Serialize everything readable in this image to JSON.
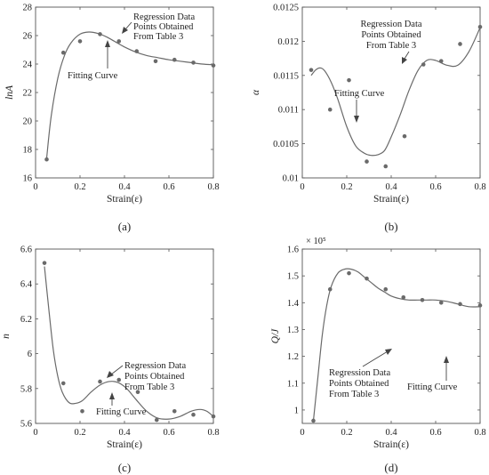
{
  "chart_data": [
    {
      "type": "scatter",
      "panel": "a",
      "caption": "(a)",
      "ylabel": "lnA",
      "xlabel": "Strain(ε)",
      "xlim": [
        0,
        0.8
      ],
      "ylim": [
        16,
        28
      ],
      "xticks": [
        "0",
        "0.2",
        "0.4",
        "0.6",
        "0.8"
      ],
      "yticks": [
        "16",
        "18",
        "20",
        "22",
        "24",
        "26",
        "28"
      ],
      "annotations": {
        "regression": [
          "Regression Data",
          "Points Obtained",
          "From Table 3"
        ],
        "fitting": "Fitting Curve"
      },
      "points": {
        "x": [
          0.05,
          0.125,
          0.2,
          0.29,
          0.375,
          0.455,
          0.54,
          0.625,
          0.71,
          0.8
        ],
        "y": [
          17.3,
          24.8,
          25.6,
          26.1,
          25.6,
          24.9,
          24.2,
          24.3,
          24.1,
          23.9
        ]
      },
      "curve": {
        "x": [
          0.05,
          0.07,
          0.1,
          0.13,
          0.16,
          0.2,
          0.24,
          0.28,
          0.32,
          0.36,
          0.4,
          0.45,
          0.5,
          0.55,
          0.6,
          0.65,
          0.7,
          0.75,
          0.8
        ],
        "y": [
          17.4,
          20.3,
          23.0,
          24.6,
          25.5,
          26.1,
          26.25,
          26.15,
          25.9,
          25.55,
          25.2,
          24.85,
          24.6,
          24.45,
          24.3,
          24.2,
          24.1,
          24.0,
          23.95
        ]
      },
      "series": [
        {
          "name": "Regression Data Points Obtained From Table 3",
          "style": "markers"
        },
        {
          "name": "Fitting Curve",
          "style": "line"
        }
      ]
    },
    {
      "type": "scatter",
      "panel": "b",
      "caption": "(b)",
      "ylabel": "α",
      "xlabel": "Strain(ε)",
      "xlim": [
        0,
        0.8
      ],
      "ylim": [
        0.01,
        0.0125
      ],
      "xticks": [
        "0",
        "0.2",
        "0.4",
        "0.6",
        "0.8"
      ],
      "yticks": [
        "0.01",
        "0.0105",
        "0.011",
        "0.0115",
        "0.012",
        "0.0125"
      ],
      "annotations": {
        "regression": [
          "Regression Data",
          "Points Obtained",
          "From Table 3"
        ],
        "fitting": "Fitting Curve"
      },
      "points": {
        "x": [
          0.04,
          0.125,
          0.21,
          0.29,
          0.375,
          0.46,
          0.545,
          0.625,
          0.71,
          0.8
        ],
        "y": [
          0.01158,
          0.011,
          0.01143,
          0.01024,
          0.01017,
          0.01061,
          0.01166,
          0.01171,
          0.01196,
          0.01221
        ]
      },
      "curve": {
        "x": [
          0.04,
          0.06,
          0.08,
          0.1,
          0.13,
          0.16,
          0.2,
          0.24,
          0.28,
          0.31,
          0.34,
          0.37,
          0.4,
          0.44,
          0.48,
          0.52,
          0.56,
          0.6,
          0.65,
          0.7,
          0.75,
          0.8
        ],
        "y": [
          0.0115,
          0.01158,
          0.01161,
          0.01157,
          0.0114,
          0.01115,
          0.01075,
          0.01047,
          0.01036,
          0.01033,
          0.01034,
          0.0104,
          0.0106,
          0.01092,
          0.01128,
          0.01157,
          0.01172,
          0.01172,
          0.01165,
          0.01165,
          0.01185,
          0.0122
        ]
      },
      "series": [
        {
          "name": "Regression Data Points Obtained From Table 3",
          "style": "markers"
        },
        {
          "name": "Fitting Curve",
          "style": "line"
        }
      ]
    },
    {
      "type": "scatter",
      "panel": "c",
      "caption": "(c)",
      "ylabel": "n",
      "xlabel": "Strain(ε)",
      "xlim": [
        0,
        0.8
      ],
      "ylim": [
        5.6,
        6.6
      ],
      "xticks": [
        "0",
        "0.2",
        "0.4",
        "0.6",
        "0.8"
      ],
      "yticks": [
        "5.6",
        "5.8",
        "6",
        "6.2",
        "6.4",
        "6.6"
      ],
      "annotations": {
        "regression": [
          "Regression Data",
          "Points Obtained",
          "From Table 3"
        ],
        "fitting": "Fitting Curve"
      },
      "points": {
        "x": [
          0.04,
          0.125,
          0.21,
          0.29,
          0.375,
          0.46,
          0.545,
          0.625,
          0.71,
          0.8
        ],
        "y": [
          6.52,
          5.83,
          5.67,
          5.84,
          5.85,
          5.78,
          5.62,
          5.67,
          5.65,
          5.64
        ]
      },
      "curve": {
        "x": [
          0.04,
          0.06,
          0.08,
          0.1,
          0.12,
          0.15,
          0.18,
          0.21,
          0.25,
          0.29,
          0.33,
          0.37,
          0.41,
          0.45,
          0.5,
          0.55,
          0.6,
          0.65,
          0.7,
          0.74,
          0.77,
          0.8
        ],
        "y": [
          6.5,
          6.25,
          6.02,
          5.87,
          5.78,
          5.72,
          5.715,
          5.73,
          5.78,
          5.82,
          5.84,
          5.835,
          5.8,
          5.74,
          5.67,
          5.63,
          5.625,
          5.64,
          5.67,
          5.68,
          5.67,
          5.64
        ]
      },
      "series": [
        {
          "name": "Regression Data Points Obtained From Table 3",
          "style": "markers"
        },
        {
          "name": "Fitting Curve",
          "style": "line"
        }
      ]
    },
    {
      "type": "scatter",
      "panel": "d",
      "caption": "(d)",
      "ylabel": "Q/J",
      "xlabel": "Strain(ε)",
      "multiplier": "× 10⁵",
      "xlim": [
        0,
        0.8
      ],
      "ylim": [
        0.95,
        1.6
      ],
      "xticks": [
        "0",
        "0.2",
        "0.4",
        "0.6",
        "0.8"
      ],
      "yticks": [
        "1",
        "1.1",
        "1.2",
        "1.3",
        "1.4",
        "1.5",
        "1.6"
      ],
      "annotations": {
        "regression": [
          "Regression Data",
          "Points Obtained",
          "From Table 3"
        ],
        "fitting": "Fitting Curve"
      },
      "points": {
        "x": [
          0.05,
          0.125,
          0.21,
          0.29,
          0.375,
          0.455,
          0.54,
          0.625,
          0.71,
          0.8
        ],
        "y": [
          0.96,
          1.45,
          1.51,
          1.49,
          1.45,
          1.42,
          1.41,
          1.4,
          1.395,
          1.39
        ]
      },
      "curve": {
        "x": [
          0.05,
          0.07,
          0.09,
          0.11,
          0.13,
          0.16,
          0.19,
          0.22,
          0.25,
          0.28,
          0.31,
          0.34,
          0.37,
          0.4,
          0.44,
          0.48,
          0.52,
          0.56,
          0.6,
          0.65,
          0.7,
          0.75,
          0.8
        ],
        "y": [
          0.96,
          1.12,
          1.28,
          1.39,
          1.46,
          1.51,
          1.525,
          1.525,
          1.515,
          1.495,
          1.475,
          1.455,
          1.44,
          1.425,
          1.415,
          1.41,
          1.41,
          1.41,
          1.41,
          1.405,
          1.395,
          1.385,
          1.385
        ]
      },
      "series": [
        {
          "name": "Regression Data Points Obtained From Table 3",
          "style": "markers"
        },
        {
          "name": "Fitting Curve",
          "style": "line"
        }
      ]
    }
  ]
}
